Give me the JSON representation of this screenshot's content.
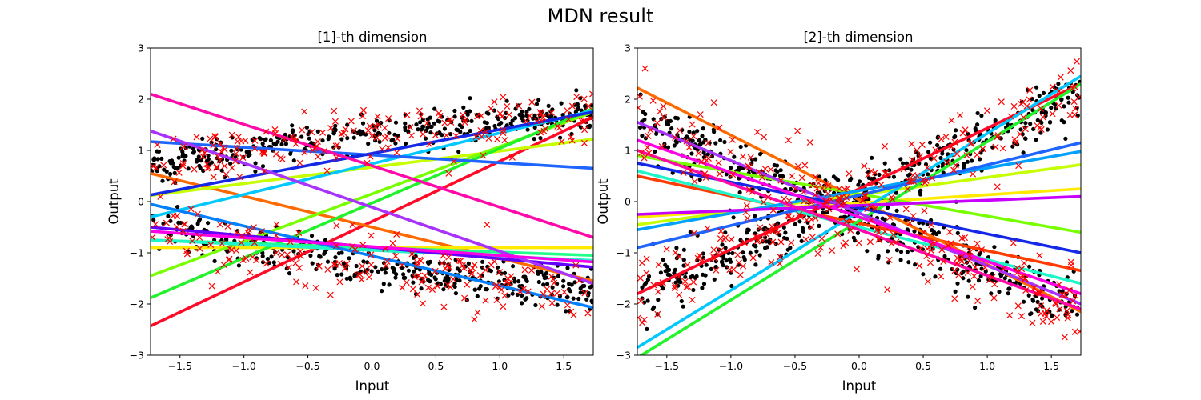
{
  "figure": {
    "title": "MDN result"
  },
  "chart_data": [
    {
      "type": "line",
      "title": "[1]-th dimension",
      "xlabel": "Input",
      "ylabel": "Output",
      "xlim": [
        -1.73,
        1.73
      ],
      "ylim": [
        -3,
        3
      ],
      "xticks": [
        -1.5,
        -1.0,
        -0.5,
        0.0,
        0.5,
        1.0,
        1.5
      ],
      "xtick_labels": [
        "−1.5",
        "−1.0",
        "−0.5",
        "0.0",
        "0.5",
        "1.0",
        "1.5"
      ],
      "yticks": [
        -3,
        -2,
        -1,
        0,
        1,
        2,
        3
      ],
      "ytick_labels": [
        "−3",
        "−2",
        "−1",
        "0",
        "1",
        "2",
        "3"
      ],
      "grid": false,
      "scatter_series": [
        {
          "marker": "dot",
          "color": "#000000",
          "description": "training data (two branches of a cross pattern)",
          "branches": [
            {
              "x_range": [
                -1.73,
                1.73
              ],
              "y_start": 0.7,
              "y_end": 1.7,
              "curve": 0.25,
              "noise": 0.18,
              "count": 360
            },
            {
              "x_range": [
                -1.73,
                1.73
              ],
              "y_start": -0.45,
              "y_end": -1.75,
              "curve": -0.3,
              "noise": 0.2,
              "count": 360
            }
          ]
        },
        {
          "marker": "x",
          "color": "#ff0000",
          "description": "samples drawn from MDN",
          "branches": [
            {
              "x_range": [
                -1.73,
                1.73
              ],
              "y_start": 0.7,
              "y_end": 1.7,
              "curve": 0.25,
              "noise": 0.28,
              "count": 170
            },
            {
              "x_range": [
                -1.73,
                1.73
              ],
              "y_start": -0.45,
              "y_end": -1.75,
              "curve": -0.3,
              "noise": 0.3,
              "count": 170
            }
          ],
          "outliers": [
            {
              "x": 0.8,
              "y": -2.3
            },
            {
              "x": 0.27,
              "y": -1.58
            },
            {
              "x": 0.05,
              "y": 1.5
            },
            {
              "x": 0.43,
              "y": 1.53
            },
            {
              "x": 0.3,
              "y": 1.45
            },
            {
              "x": -0.35,
              "y": 0.6
            },
            {
              "x": 0.6,
              "y": 0.55
            },
            {
              "x": 0.9,
              "y": -0.45
            },
            {
              "x": -0.15,
              "y": -0.45
            },
            {
              "x": 0.87,
              "y": 0.9
            },
            {
              "x": -1.25,
              "y": -1.65
            }
          ]
        }
      ],
      "lines": [
        {
          "color": "#ff0a28",
          "x": [
            -1.73,
            1.73
          ],
          "y": [
            -2.43,
            1.65
          ]
        },
        {
          "color": "#ff6a00",
          "x": [
            -1.73,
            1.73
          ],
          "y": [
            0.55,
            -1.55
          ]
        },
        {
          "color": "#ffea00",
          "x": [
            -1.73,
            1.73
          ],
          "y": [
            -0.9,
            -0.9
          ]
        },
        {
          "color": "#c6ff00",
          "x": [
            -1.73,
            1.73
          ],
          "y": [
            0.12,
            1.22
          ]
        },
        {
          "color": "#78ff00",
          "x": [
            -1.73,
            1.73
          ],
          "y": [
            -1.45,
            1.75
          ]
        },
        {
          "color": "#22f22a",
          "x": [
            -1.73,
            1.73
          ],
          "y": [
            -1.88,
            1.82
          ]
        },
        {
          "color": "#22ff88",
          "x": [
            -1.73,
            1.73
          ],
          "y": [
            -0.75,
            -1.05
          ]
        },
        {
          "color": "#1ef5c8",
          "x": [
            -1.73,
            1.73
          ],
          "y": [
            -0.75,
            -1.15
          ]
        },
        {
          "color": "#00c8ff",
          "x": [
            -1.73,
            1.73
          ],
          "y": [
            -0.3,
            1.78
          ]
        },
        {
          "color": "#0080ff",
          "x": [
            -1.73,
            1.73
          ],
          "y": [
            -0.05,
            -2.07
          ]
        },
        {
          "color": "#1e64ff",
          "x": [
            -1.73,
            1.73
          ],
          "y": [
            1.17,
            0.65
          ]
        },
        {
          "color": "#1428e6",
          "x": [
            -1.73,
            1.73
          ],
          "y": [
            0.13,
            1.75
          ]
        },
        {
          "color": "#6400ff",
          "x": [
            -1.73,
            1.73
          ],
          "y": [
            -0.5,
            -1.28
          ]
        },
        {
          "color": "#a832ff",
          "x": [
            -1.73,
            1.73
          ],
          "y": [
            1.38,
            -1.6
          ]
        },
        {
          "color": "#ff00e6",
          "x": [
            -1.73,
            1.73
          ],
          "y": [
            -0.58,
            -1.18
          ]
        },
        {
          "color": "#ff0aaa",
          "x": [
            -1.73,
            1.73
          ],
          "y": [
            2.1,
            -0.7
          ]
        }
      ]
    },
    {
      "type": "line",
      "title": "[2]-th dimension",
      "xlabel": "Input",
      "ylabel": "Output",
      "xlim": [
        -1.73,
        1.73
      ],
      "ylim": [
        -3,
        3
      ],
      "xticks": [
        -1.5,
        -1.0,
        -0.5,
        0.0,
        0.5,
        1.0,
        1.5
      ],
      "xtick_labels": [
        "−1.5",
        "−1.0",
        "−0.5",
        "0.0",
        "0.5",
        "1.0",
        "1.5"
      ],
      "yticks": [
        -3,
        -2,
        -1,
        0,
        1,
        2,
        3
      ],
      "ytick_labels": [
        "−3",
        "−2",
        "−1",
        "0",
        "1",
        "2",
        "3"
      ],
      "grid": false,
      "scatter_series": [
        {
          "marker": "dot",
          "color": "#000000",
          "description": "training data (two crossing branches)",
          "branches": [
            {
              "x_range": [
                -1.73,
                1.73
              ],
              "y_start": -1.75,
              "y_end": 2.05,
              "curve": 0.0,
              "noise": 0.28,
              "count": 420
            },
            {
              "x_range": [
                -1.73,
                1.73
              ],
              "y_start": 1.55,
              "y_end": -2.15,
              "curve": 0.0,
              "noise": 0.28,
              "count": 420
            }
          ]
        },
        {
          "marker": "x",
          "color": "#ff0000",
          "description": "samples drawn from MDN",
          "branches": [
            {
              "x_range": [
                -1.73,
                1.73
              ],
              "y_start": -1.75,
              "y_end": 2.05,
              "curve": 0.0,
              "noise": 0.38,
              "count": 190
            },
            {
              "x_range": [
                -1.73,
                1.73
              ],
              "y_start": 1.55,
              "y_end": -2.15,
              "curve": 0.0,
              "noise": 0.38,
              "count": 190
            }
          ],
          "outliers": [
            {
              "x": -1.67,
              "y": 2.6
            },
            {
              "x": 0.22,
              "y": -1.72
            },
            {
              "x": 0.2,
              "y": 1.08
            },
            {
              "x": -0.48,
              "y": 1.38
            },
            {
              "x": -0.02,
              "y": -1.32
            },
            {
              "x": -0.55,
              "y": 1.2
            },
            {
              "x": 0.45,
              "y": 1.0
            },
            {
              "x": -0.3,
              "y": -0.9
            }
          ]
        }
      ],
      "lines": [
        {
          "color": "#ff0a28",
          "x": [
            -1.73,
            1.73
          ],
          "y": [
            -1.8,
            2.3
          ]
        },
        {
          "color": "#ff3c00",
          "x": [
            -1.73,
            1.73
          ],
          "y": [
            0.5,
            -1.35
          ]
        },
        {
          "color": "#ff6a00",
          "x": [
            -1.73,
            1.73
          ],
          "y": [
            2.22,
            -2.15
          ]
        },
        {
          "color": "#ffea00",
          "x": [
            -1.73,
            1.73
          ],
          "y": [
            -0.3,
            0.25
          ]
        },
        {
          "color": "#c6ff00",
          "x": [
            -1.73,
            1.73
          ],
          "y": [
            -0.45,
            0.72
          ]
        },
        {
          "color": "#78ff00",
          "x": [
            -1.73,
            1.73
          ],
          "y": [
            0.9,
            -0.6
          ]
        },
        {
          "color": "#22f22a",
          "x": [
            -1.73,
            1.73
          ],
          "y": [
            -3.05,
            2.3
          ]
        },
        {
          "color": "#1ef5c8",
          "x": [
            -1.73,
            1.73
          ],
          "y": [
            0.6,
            -1.6
          ]
        },
        {
          "color": "#00c8ff",
          "x": [
            -1.73,
            1.73
          ],
          "y": [
            -2.85,
            2.45
          ]
        },
        {
          "color": "#00a0ff",
          "x": [
            -1.73,
            1.73
          ],
          "y": [
            -0.55,
            0.98
          ]
        },
        {
          "color": "#1e64ff",
          "x": [
            -1.73,
            1.73
          ],
          "y": [
            -0.9,
            1.15
          ]
        },
        {
          "color": "#1428e6",
          "x": [
            -1.73,
            1.73
          ],
          "y": [
            0.75,
            -1.0
          ]
        },
        {
          "color": "#a832ff",
          "x": [
            -1.73,
            1.73
          ],
          "y": [
            1.55,
            -2.0
          ]
        },
        {
          "color": "#c800ff",
          "x": [
            -1.73,
            1.73
          ],
          "y": [
            -0.25,
            0.1
          ]
        },
        {
          "color": "#ff00e6",
          "x": [
            -1.73,
            1.73
          ],
          "y": [
            1.2,
            -1.8
          ]
        },
        {
          "color": "#ff0aaa",
          "x": [
            -1.73,
            1.73
          ],
          "y": [
            1.0,
            -2.1
          ]
        }
      ]
    }
  ]
}
